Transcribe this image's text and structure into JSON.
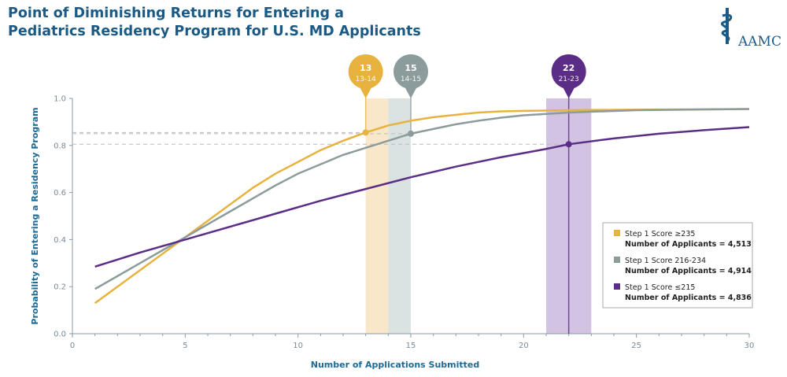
{
  "header": {
    "title_line1": "Point of Diminishing Returns for Entering a",
    "title_line2": "Pediatrics Residency Program for U.S. MD Applicants",
    "logo_text": "AAMC"
  },
  "chart_data": {
    "type": "line",
    "title": "Point of Diminishing Returns for Entering a Pediatrics Residency Program for U.S. MD Applicants",
    "xlabel": "Number of Applications Submitted",
    "ylabel": "Probability of Entering a Residency Program",
    "xlim": [
      0,
      30
    ],
    "ylim": [
      0,
      1.0
    ],
    "xticks": [
      "0",
      "5",
      "10",
      "15",
      "20",
      "25",
      "30"
    ],
    "yticks": [
      "0.0",
      "0.2",
      "0.4",
      "0.6",
      "0.8",
      "1.0"
    ],
    "legend_position": "bottom-right",
    "series": [
      {
        "name": "Step 1 Score ≥235",
        "applicants": "Number of Applicants = 4,513",
        "color": "#e8b23f",
        "band_color": "#f8e3c0",
        "x": [
          1,
          2,
          3,
          4,
          5,
          6,
          7,
          8,
          9,
          10,
          11,
          12,
          13,
          14,
          15,
          16,
          17,
          18,
          19,
          20,
          22,
          25,
          30
        ],
        "y": [
          0.13,
          0.2,
          0.27,
          0.34,
          0.41,
          0.48,
          0.55,
          0.62,
          0.68,
          0.73,
          0.78,
          0.82,
          0.855,
          0.885,
          0.905,
          0.92,
          0.93,
          0.94,
          0.945,
          0.947,
          0.95,
          0.952,
          0.955
        ],
        "point": {
          "x": 13,
          "y": 0.855
        },
        "band": [
          13,
          14
        ],
        "marker": {
          "value": "13",
          "range": "13-14"
        }
      },
      {
        "name": "Step 1 Score 216-234",
        "applicants": "Number of Applicants = 4,914",
        "color": "#8c9b9b",
        "band_color": "#d5dedd",
        "x": [
          1,
          2,
          3,
          4,
          5,
          6,
          7,
          8,
          9,
          10,
          11,
          12,
          13,
          14,
          15,
          16,
          17,
          18,
          19,
          20,
          22,
          25,
          30
        ],
        "y": [
          0.19,
          0.245,
          0.3,
          0.355,
          0.41,
          0.465,
          0.52,
          0.575,
          0.63,
          0.68,
          0.72,
          0.76,
          0.79,
          0.82,
          0.85,
          0.87,
          0.89,
          0.905,
          0.918,
          0.928,
          0.94,
          0.95,
          0.955
        ],
        "point": {
          "x": 15,
          "y": 0.85
        },
        "band": [
          14,
          15
        ],
        "marker": {
          "value": "15",
          "range": "14-15"
        }
      },
      {
        "name": "Step 1 Score ≤215",
        "applicants": "Number of Applicants = 4,836",
        "color": "#5b2d86",
        "band_color": "#c9b8dc",
        "x": [
          1,
          3,
          5,
          7,
          9,
          11,
          13,
          15,
          17,
          19,
          21,
          22,
          24,
          26,
          28,
          30
        ],
        "y": [
          0.285,
          0.345,
          0.4,
          0.455,
          0.51,
          0.565,
          0.615,
          0.665,
          0.71,
          0.75,
          0.785,
          0.805,
          0.83,
          0.85,
          0.865,
          0.878
        ],
        "point": {
          "x": 22,
          "y": 0.805
        },
        "band": [
          21,
          23
        ],
        "marker": {
          "value": "22",
          "range": "21-23"
        }
      }
    ]
  }
}
